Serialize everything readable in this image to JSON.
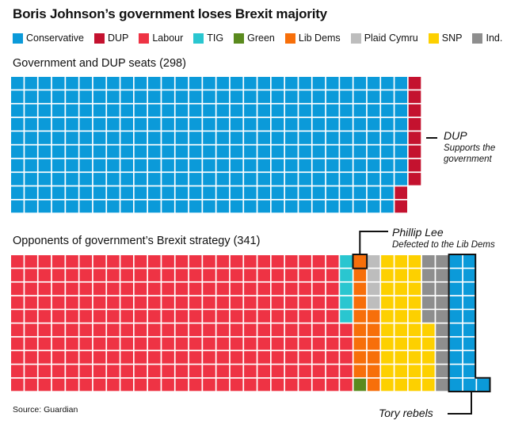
{
  "chart_data": [
    {
      "type": "waffle",
      "title": "Boris Johnson’s government loses Brexit majority",
      "subtitle": "Government and DUP seats (298)",
      "total": 298,
      "series": [
        {
          "name": "Conservative",
          "values": [
            288
          ]
        },
        {
          "name": "DUP",
          "values": [
            10
          ]
        }
      ]
    },
    {
      "type": "waffle",
      "subtitle": "Opponents of government’s Brexit strategy (341)",
      "total": 341,
      "series": [
        {
          "name": "Labour",
          "values": [
            245
          ]
        },
        {
          "name": "TIG",
          "values": [
            5
          ]
        },
        {
          "name": "Green",
          "values": [
            1
          ]
        },
        {
          "name": "Lib Dems",
          "values": [
            15
          ]
        },
        {
          "name": "Plaid Cymru",
          "values": [
            4
          ]
        },
        {
          "name": "SNP",
          "values": [
            35
          ]
        },
        {
          "name": "Ind.",
          "values": [
            15
          ]
        },
        {
          "name": "Conservative",
          "values": [
            21
          ]
        }
      ]
    }
  ],
  "title": "Boris Johnson’s government loses Brexit majority",
  "legend": [
    {
      "name": "Conservative",
      "color": "#0b9ad9"
    },
    {
      "name": "DUP",
      "color": "#c4122f"
    },
    {
      "name": "Labour",
      "color": "#ee3344"
    },
    {
      "name": "TIG",
      "color": "#2ac6d0"
    },
    {
      "name": "Green",
      "color": "#5a8a1e"
    },
    {
      "name": "Lib Dems",
      "color": "#f76f0a"
    },
    {
      "name": "Plaid Cymru",
      "color": "#bdbdbd"
    },
    {
      "name": "SNP",
      "color": "#fdd000"
    },
    {
      "name": "Ind.",
      "color": "#8e8e8e"
    }
  ],
  "grid1_title": "Government and DUP seats (298)",
  "grid2_title": "Opponents of government’s Brexit strategy (341)",
  "annotations": {
    "dup": {
      "title": "DUP",
      "text1": "Supports the",
      "text2": "government"
    },
    "lee": {
      "title": "Phillip Lee",
      "text": "Defected to the Lib Dems"
    },
    "rebels": {
      "title": "Tory rebels"
    }
  },
  "source": "Source: Guardian"
}
